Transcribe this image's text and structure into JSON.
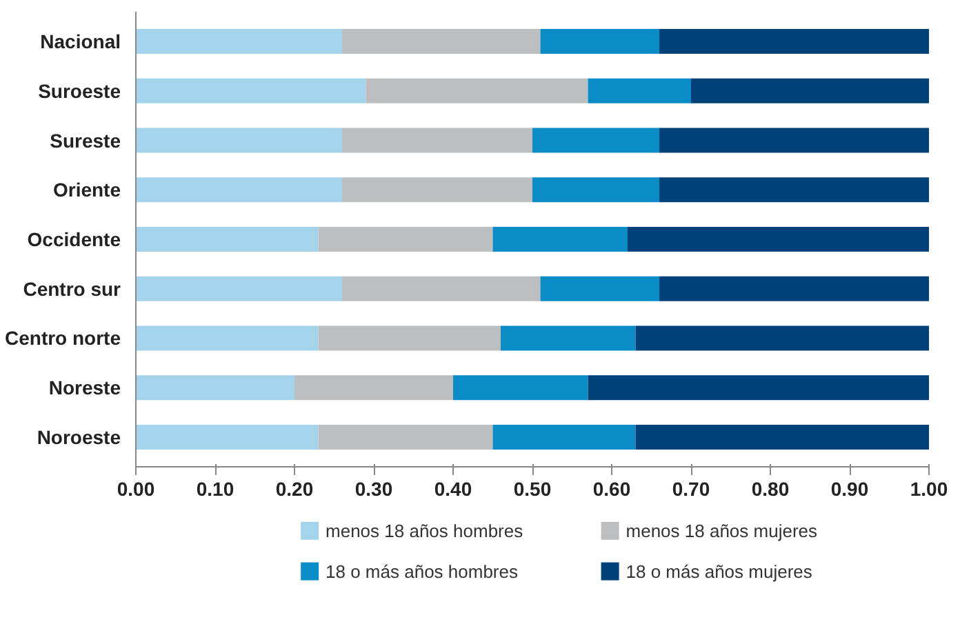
{
  "chart_data": {
    "type": "bar",
    "orientation": "horizontal",
    "stacked": true,
    "categories": [
      "Nacional",
      "Suroeste",
      "Sureste",
      "Oriente",
      "Occidente",
      "Centro sur",
      "Centro norte",
      "Noreste",
      "Noroeste"
    ],
    "series": [
      {
        "name": "menos 18 años hombres",
        "color": "#a3d4ec",
        "values": [
          0.26,
          0.29,
          0.26,
          0.26,
          0.23,
          0.26,
          0.23,
          0.2,
          0.23
        ]
      },
      {
        "name": "menos 18 años mujeres",
        "color": "#bcbec0",
        "values": [
          0.25,
          0.28,
          0.24,
          0.24,
          0.22,
          0.25,
          0.23,
          0.2,
          0.22
        ]
      },
      {
        "name": "18 o más años hombres",
        "color": "#0a8cc6",
        "values": [
          0.15,
          0.13,
          0.16,
          0.16,
          0.17,
          0.15,
          0.17,
          0.17,
          0.18
        ]
      },
      {
        "name": "18 o más años mujeres",
        "color": "#00417a",
        "values": [
          0.34,
          0.3,
          0.34,
          0.34,
          0.38,
          0.34,
          0.37,
          0.43,
          0.37
        ]
      }
    ],
    "xlim": [
      0,
      1
    ],
    "xticks": [
      {
        "value": 0,
        "label": "0.00"
      },
      {
        "value": 0.1,
        "label": "0.10"
      },
      {
        "value": 0.2,
        "label": "0.20"
      },
      {
        "value": 0.3,
        "label": "0.30"
      },
      {
        "value": 0.4,
        "label": "0.40"
      },
      {
        "value": 0.5,
        "label": "0.50"
      },
      {
        "value": 0.6,
        "label": "0.60"
      },
      {
        "value": 0.7,
        "label": "0.70"
      },
      {
        "value": 0.8,
        "label": "0.80"
      },
      {
        "value": 0.9,
        "label": "0.90"
      },
      {
        "value": 1,
        "label": "1.00"
      }
    ],
    "grid": false,
    "legend": "bottom"
  }
}
